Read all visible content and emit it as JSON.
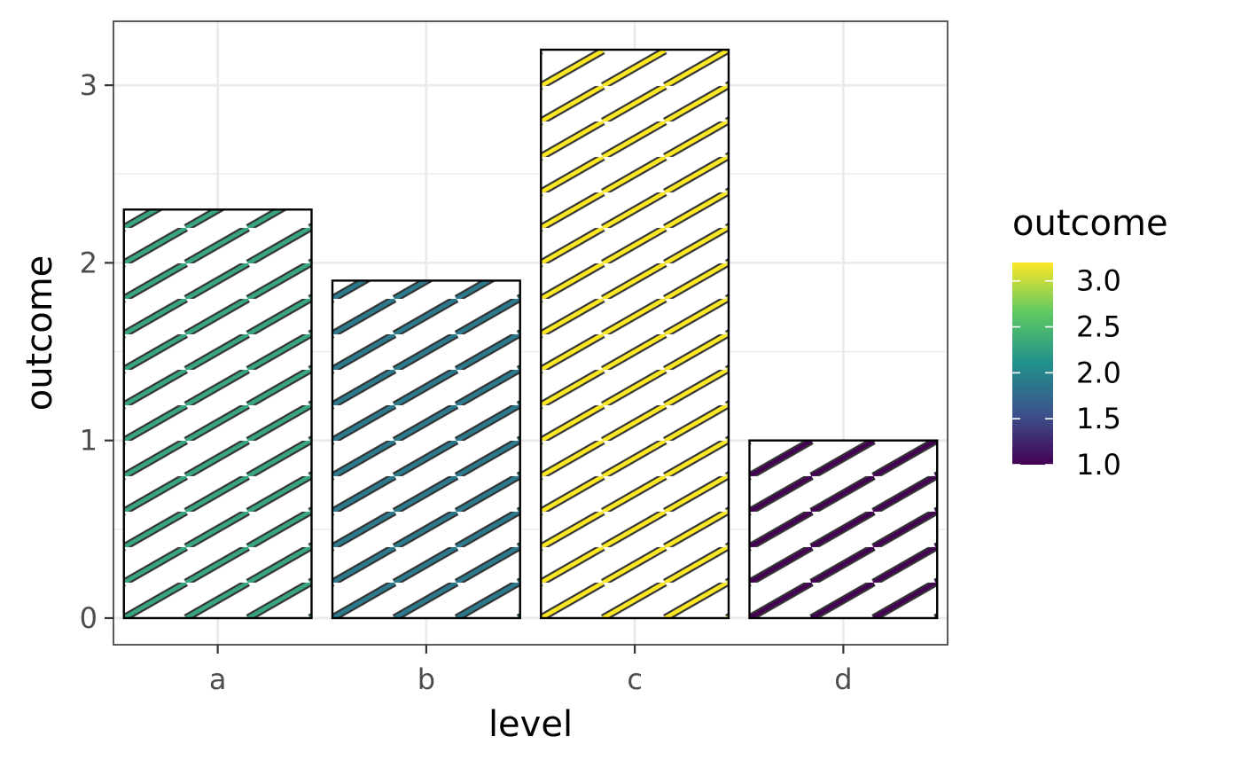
{
  "chart_data": {
    "type": "bar",
    "categories": [
      "a",
      "b",
      "c",
      "d"
    ],
    "values": [
      2.3,
      1.9,
      3.2,
      1.0
    ],
    "xlabel": "level",
    "ylabel": "outcome",
    "ylim": [
      -0.15,
      3.36
    ],
    "yticks": [
      0,
      1,
      2,
      3
    ],
    "ytick_labels": [
      "0",
      "1",
      "2",
      "3"
    ],
    "grid": true,
    "fill": "diagonal stripe pattern, stripe color mapped to outcome",
    "legend": {
      "title": "outcome",
      "placement": "right",
      "type": "colorbar",
      "range": [
        1.0,
        3.2
      ],
      "ticks": [
        1.0,
        1.5,
        2.0,
        2.5,
        3.0
      ],
      "tick_labels": [
        "1.0",
        "1.5",
        "2.0",
        "2.5",
        "3.0"
      ]
    },
    "palette": [
      "#440154",
      "#3b528b",
      "#21908c",
      "#5dc963",
      "#fde725"
    ]
  }
}
